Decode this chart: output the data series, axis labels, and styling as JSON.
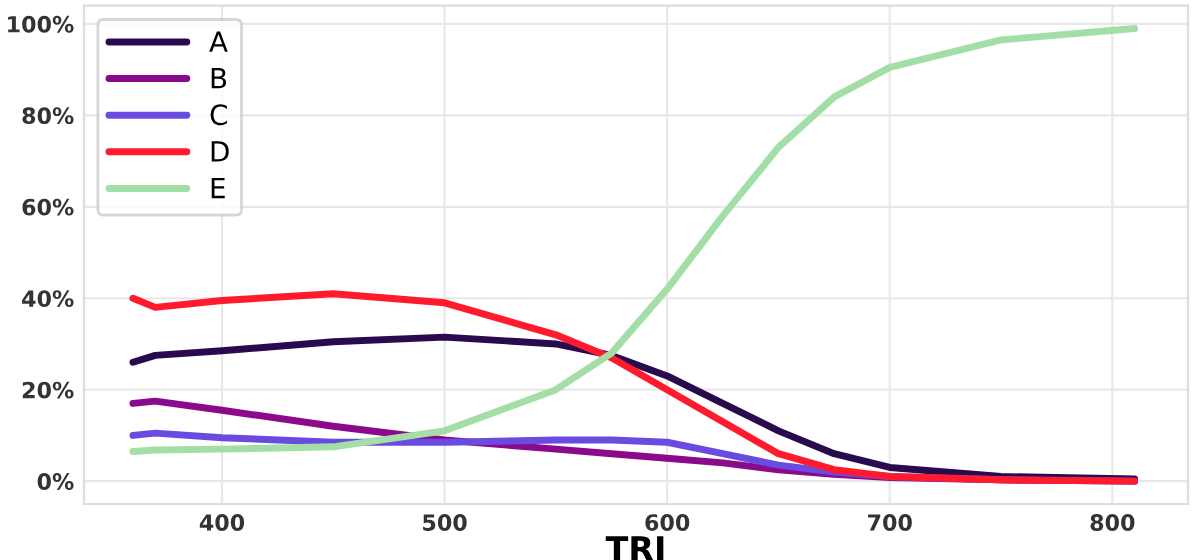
{
  "chart_data": {
    "type": "line",
    "xlabel": "TRI",
    "x": [
      360,
      370,
      400,
      450,
      500,
      550,
      575,
      600,
      625,
      650,
      675,
      700,
      750,
      810
    ],
    "series": [
      {
        "name": "A",
        "color": "#2a0a4e",
        "values": [
          26,
          27.5,
          28.5,
          30.5,
          31.5,
          30,
          27.5,
          23,
          17,
          11,
          6,
          3,
          1,
          0.5
        ]
      },
      {
        "name": "B",
        "color": "#8b0a8b",
        "values": [
          17,
          17.5,
          15.5,
          12,
          9,
          7,
          6,
          5,
          4,
          2.5,
          1.5,
          0.8,
          0.3,
          0
        ]
      },
      {
        "name": "C",
        "color": "#6a4be0",
        "values": [
          10,
          10.5,
          9.5,
          8.5,
          8.5,
          9,
          9,
          8.5,
          6,
          3.5,
          2,
          1,
          0.3,
          0
        ]
      },
      {
        "name": "D",
        "color": "#ff1a2e",
        "values": [
          40,
          38,
          39.5,
          41,
          39,
          32,
          27,
          20,
          13,
          6,
          2.5,
          1,
          0.3,
          0
        ]
      },
      {
        "name": "E",
        "color": "#a3dea6",
        "values": [
          6.5,
          6.8,
          7,
          7.5,
          11,
          20,
          28,
          42,
          58,
          73,
          84,
          90.5,
          96.5,
          99
        ]
      }
    ],
    "xlim": [
      338,
      834
    ],
    "xticks": [
      400,
      500,
      600,
      700,
      800
    ],
    "ylim": [
      -5,
      104
    ],
    "yticks": [
      {
        "value": 0,
        "label": "0%"
      },
      {
        "value": 20,
        "label": "20%"
      },
      {
        "value": 40,
        "label": "40%"
      },
      {
        "value": 60,
        "label": "60%"
      },
      {
        "value": 80,
        "label": "80%"
      },
      {
        "value": 100,
        "label": "100%"
      }
    ],
    "grid": true,
    "legend": "top left",
    "line_style": "solid",
    "marker": "none"
  }
}
